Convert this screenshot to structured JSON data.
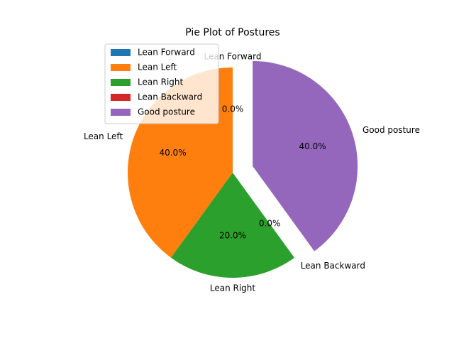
{
  "chart_data": {
    "type": "pie",
    "title": "Pie Plot of Postures",
    "categories": [
      "Lean Forward",
      "Lean Left",
      "Lean Right",
      "Lean Backward",
      "Good posture"
    ],
    "values": [
      0,
      2,
      1,
      0,
      2
    ],
    "percent_labels": [
      "0.0%",
      "40.0%",
      "20.0%",
      "0.0%",
      "40.0%"
    ],
    "colors": [
      "#1f77b4",
      "#ff7f0e",
      "#2ca02c",
      "#d62728",
      "#9467bd"
    ],
    "explode": [
      0,
      0,
      0,
      0,
      0.2
    ],
    "start_angle_deg": 90,
    "legend": {
      "position": "upper-left",
      "entries": [
        "Lean Forward",
        "Lean Left",
        "Lean Right",
        "Lean Backward",
        "Good posture"
      ]
    }
  }
}
